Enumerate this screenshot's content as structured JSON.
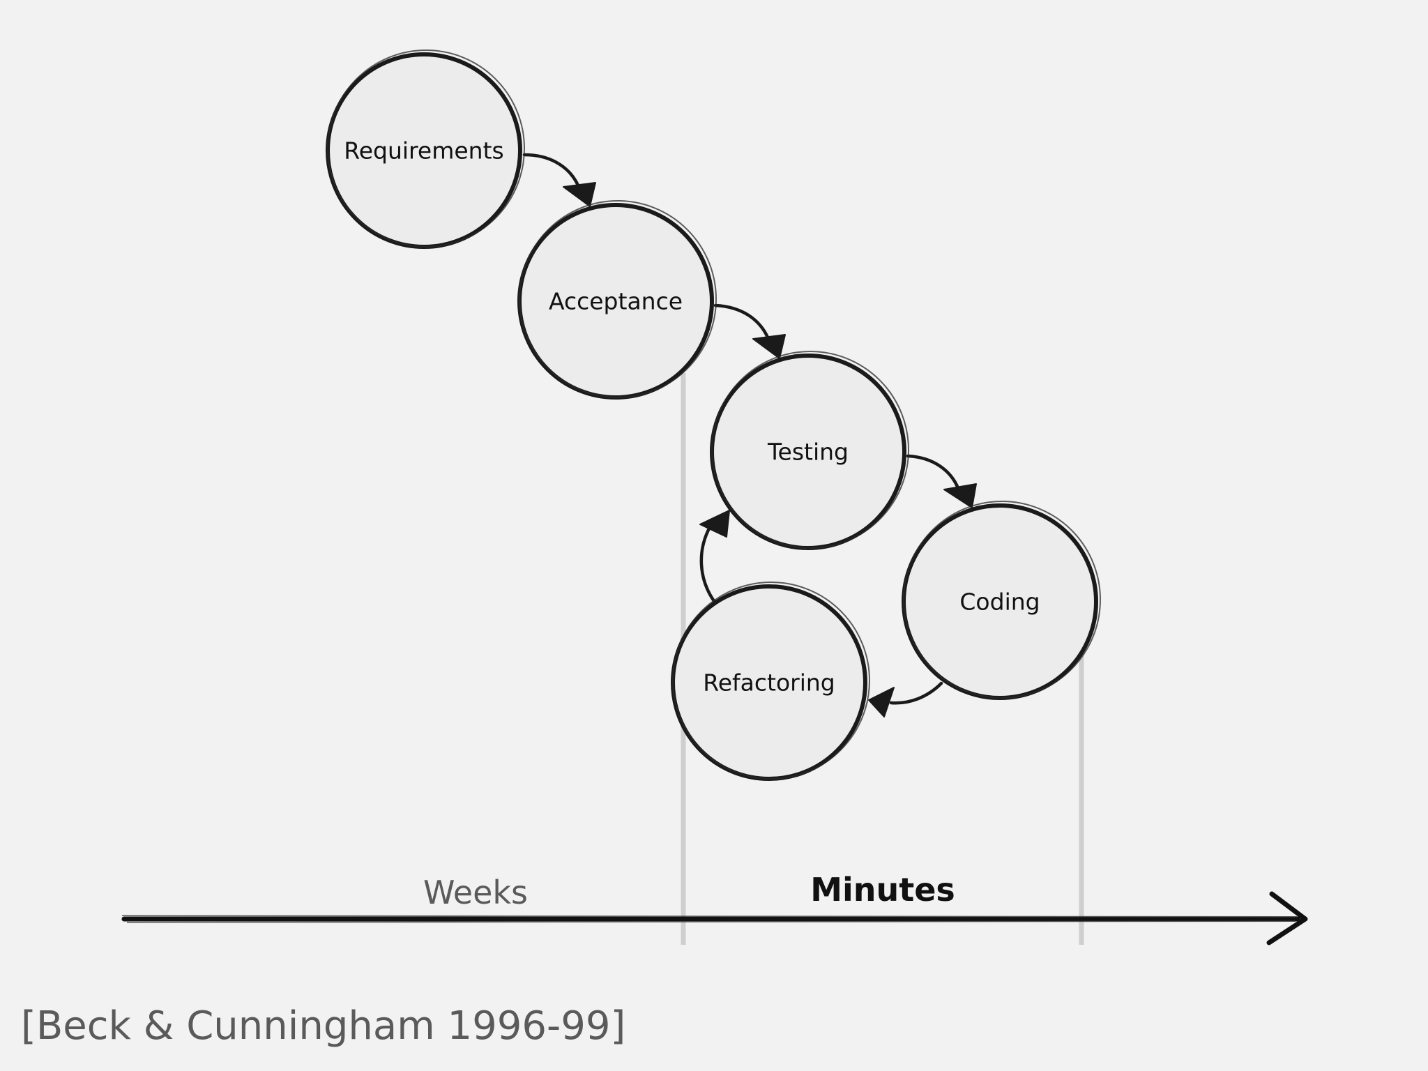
{
  "nodes": {
    "requirements": "Requirements",
    "acceptance": "Acceptance",
    "testing": "Testing",
    "coding": "Coding",
    "refactoring": "Refactoring"
  },
  "timeline": {
    "weeks": "Weeks",
    "minutes": "Minutes"
  },
  "citation": "[Beck & Cunningham 1996-99]"
}
